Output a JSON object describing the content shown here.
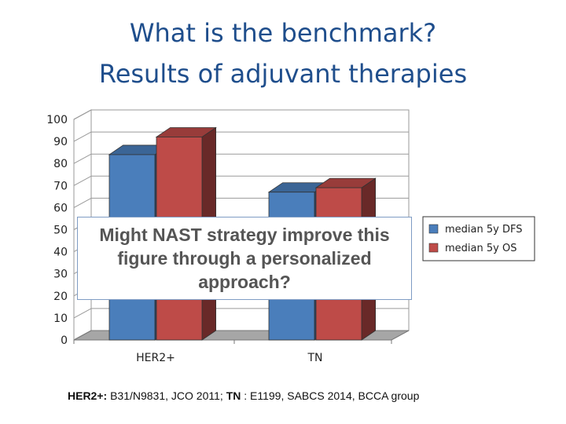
{
  "title_line1": "What is the benchmark?",
  "title_line2": "Results of adjuvant therapies",
  "overlay_text": "Might NAST strategy improve this figure through a personalized approach?",
  "footer": {
    "her2_label": "HER2+:",
    "her2_ref": " B31/N9831, JCO 2011; ",
    "tn_label": "TN",
    "tn_ref": " : E1199, SABCS 2014, BCCA",
    "group": " group"
  },
  "chart_data": {
    "type": "bar",
    "categories": [
      "HER2+",
      "TN"
    ],
    "series": [
      {
        "name": "median 5y DFS",
        "values": [
          84,
          67
        ],
        "color": "#4a7ebb"
      },
      {
        "name": "median 5y OS",
        "values": [
          92,
          69
        ],
        "color": "#be4b48"
      }
    ],
    "ylim": [
      0,
      100
    ],
    "yticks": [
      0,
      10,
      20,
      30,
      40,
      50,
      60,
      70,
      80,
      90,
      100
    ],
    "legend_position": "right",
    "style": "3d-clustered"
  }
}
